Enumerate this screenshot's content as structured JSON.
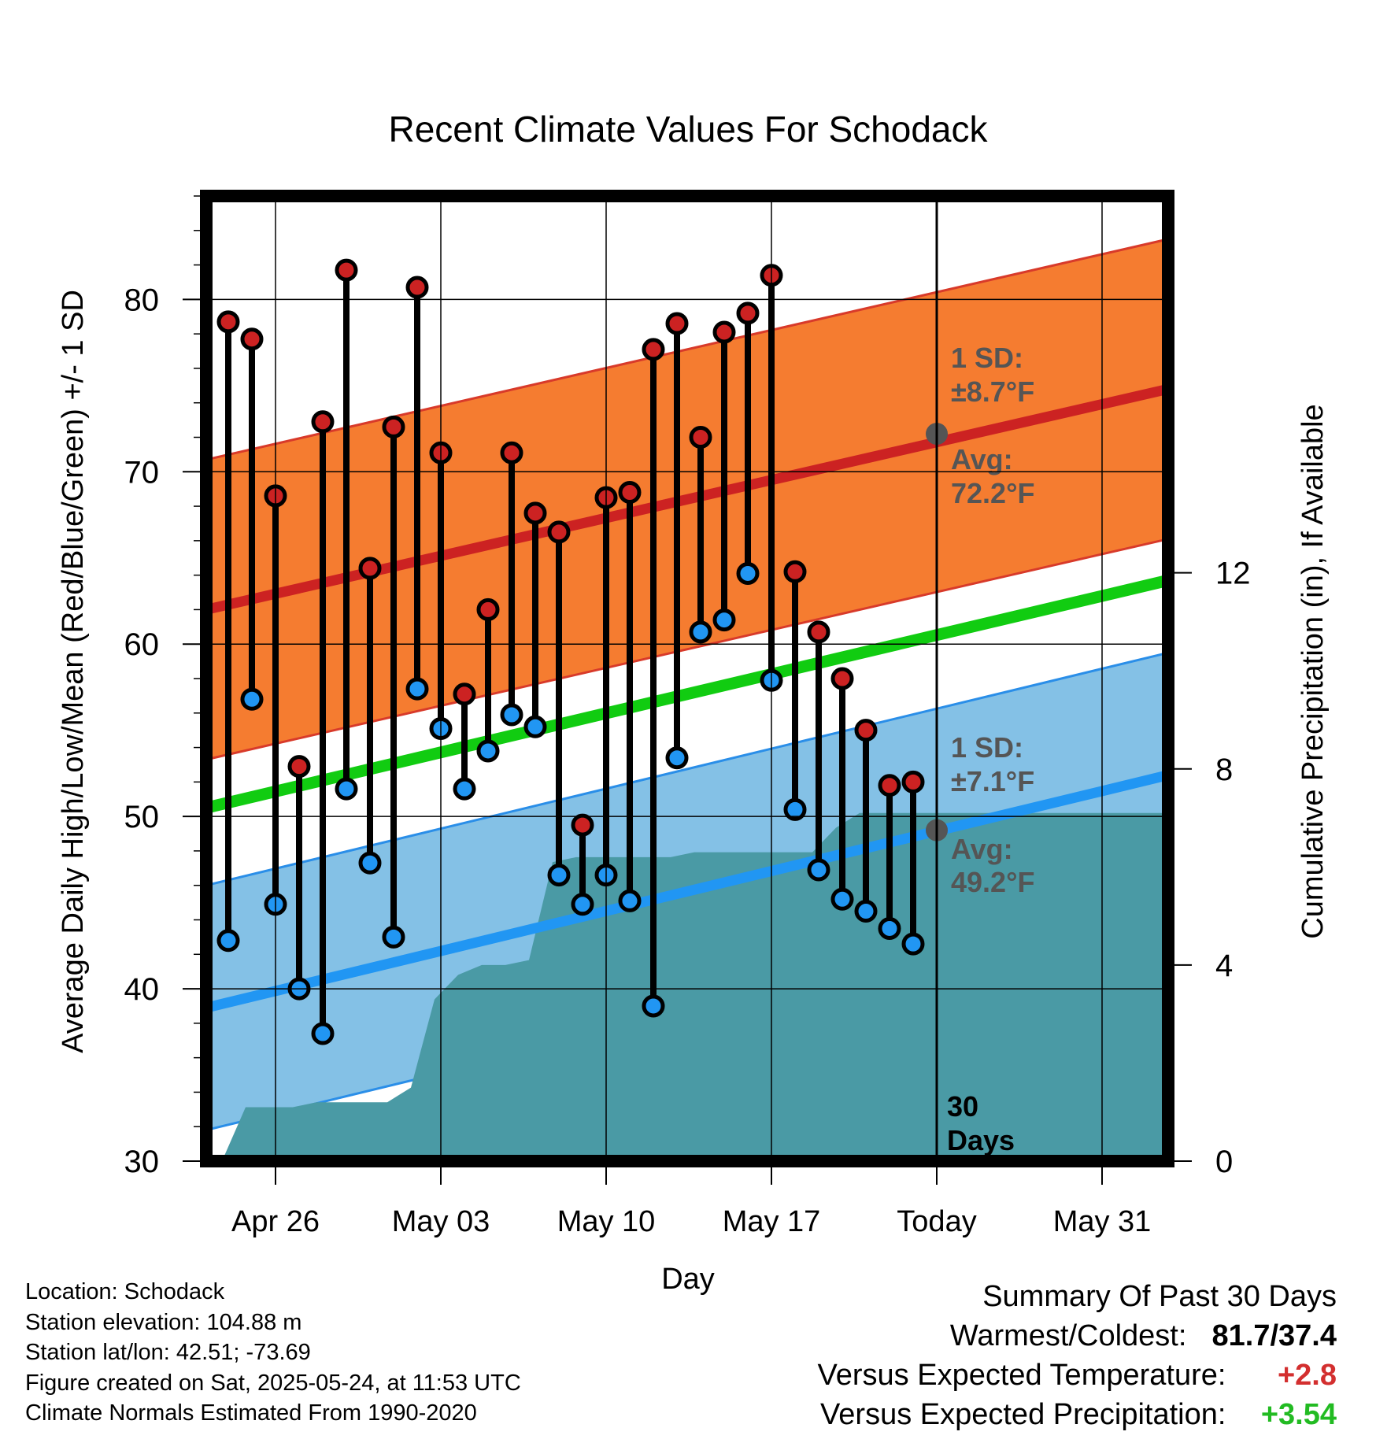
{
  "chart_data": {
    "type": "line",
    "title": "Recent Climate Values For Schodack",
    "xlabel": "Day",
    "ylabel": "Average Daily High/Low/Mean (Red/Blue/Green) +/- 1 SD",
    "y2label": "Cumulative Precipitation (in), If Available",
    "ylim": [
      30,
      86
    ],
    "y2lim": [
      0,
      15
    ],
    "y_ticks": [
      "30",
      "40",
      "50",
      "60",
      "70",
      "80"
    ],
    "y2_ticks": [
      "0",
      "4",
      "8",
      "12"
    ],
    "x_ticks": [
      "Apr 26",
      "May 03",
      "May 10",
      "May 17",
      "Today",
      "May 31"
    ],
    "grid": true,
    "colors": {
      "high": "#cc2222",
      "low": "#2196f3",
      "mean": "#11cc11",
      "high_band": "#f57c30",
      "low_band": "#84c1e6",
      "precip": "#4a9aa5",
      "today_marker": "#555555"
    },
    "days": [
      "Apr 24",
      "Apr 25",
      "Apr 26",
      "Apr 27",
      "Apr 28",
      "Apr 29",
      "Apr 30",
      "May 01",
      "May 02",
      "May 03",
      "May 04",
      "May 05",
      "May 06",
      "May 07",
      "May 08",
      "May 09",
      "May 10",
      "May 11",
      "May 12",
      "May 13",
      "May 14",
      "May 15",
      "May 16",
      "May 17",
      "May 18",
      "May 19",
      "May 20",
      "May 21",
      "May 22",
      "May 23"
    ],
    "daily_high": [
      78.7,
      77.7,
      68.6,
      52.9,
      72.9,
      81.7,
      64.4,
      72.6,
      80.7,
      71.1,
      57.1,
      62.0,
      71.1,
      67.6,
      66.5,
      49.5,
      68.5,
      68.8,
      77.1,
      78.6,
      72.0,
      78.1,
      79.2,
      81.4,
      64.2,
      60.7,
      58.0,
      55.0,
      51.8,
      52.0
    ],
    "daily_low": [
      42.8,
      56.8,
      44.9,
      40.0,
      37.4,
      51.6,
      47.3,
      43.0,
      57.4,
      55.1,
      51.6,
      53.8,
      55.9,
      55.2,
      46.6,
      44.9,
      46.6,
      45.1,
      39.0,
      53.4,
      60.7,
      61.4,
      64.1,
      57.9,
      50.4,
      46.9,
      45.2,
      44.5,
      43.5,
      42.6
    ],
    "normal_high_range": [
      "Apr 23",
      "Jun 03"
    ],
    "normal_high_avg": [
      62.0,
      74.8
    ],
    "normal_low_avg": [
      38.9,
      52.4
    ],
    "normal_mean_avg": [
      50.5,
      63.7
    ],
    "high_sd": 8.7,
    "low_sd": 7.1,
    "cumulative_precip": [
      0.0,
      1.1,
      1.1,
      1.1,
      1.2,
      1.2,
      1.2,
      1.2,
      1.5,
      3.3,
      3.8,
      4.0,
      4.0,
      4.1,
      6.1,
      6.2,
      6.2,
      6.2,
      6.2,
      6.2,
      6.3,
      6.3,
      6.3,
      6.3,
      6.3,
      6.3,
      6.8,
      7.1,
      7.1,
      7.1
    ]
  },
  "annotations": {
    "high_sd_line1": "1 SD:",
    "high_sd_line2": "±8.7°F",
    "high_avg_line1": "Avg:",
    "high_avg_line2": "72.2°F",
    "low_sd_line1": "1 SD:",
    "low_sd_line2": "±7.1°F",
    "low_avg_line1": "Avg:",
    "low_avg_line2": "49.2°F",
    "days_line1": "30",
    "days_line2": "Days",
    "today_high_avg": 72.2,
    "today_low_avg": 49.2
  },
  "info": {
    "location": "Location: Schodack",
    "elevation": "Station elevation: 104.88 m",
    "latlon": "Station lat/lon: 42.51; -73.69",
    "created": "Figure created on Sat, 2025-05-24, at 11:53 UTC",
    "normals": "Climate Normals Estimated From 1990-2020"
  },
  "summary": {
    "title": "Summary Of Past 30 Days",
    "warmest_label": "Warmest/Coldest:",
    "warmest_value": "81.7/37.4",
    "temp_label": "Versus Expected Temperature:",
    "temp_value": "+2.8",
    "temp_color": "#d32f2f",
    "precip_label": "Versus Expected Precipitation:",
    "precip_value": "+3.54",
    "precip_color": "#22bb22"
  }
}
